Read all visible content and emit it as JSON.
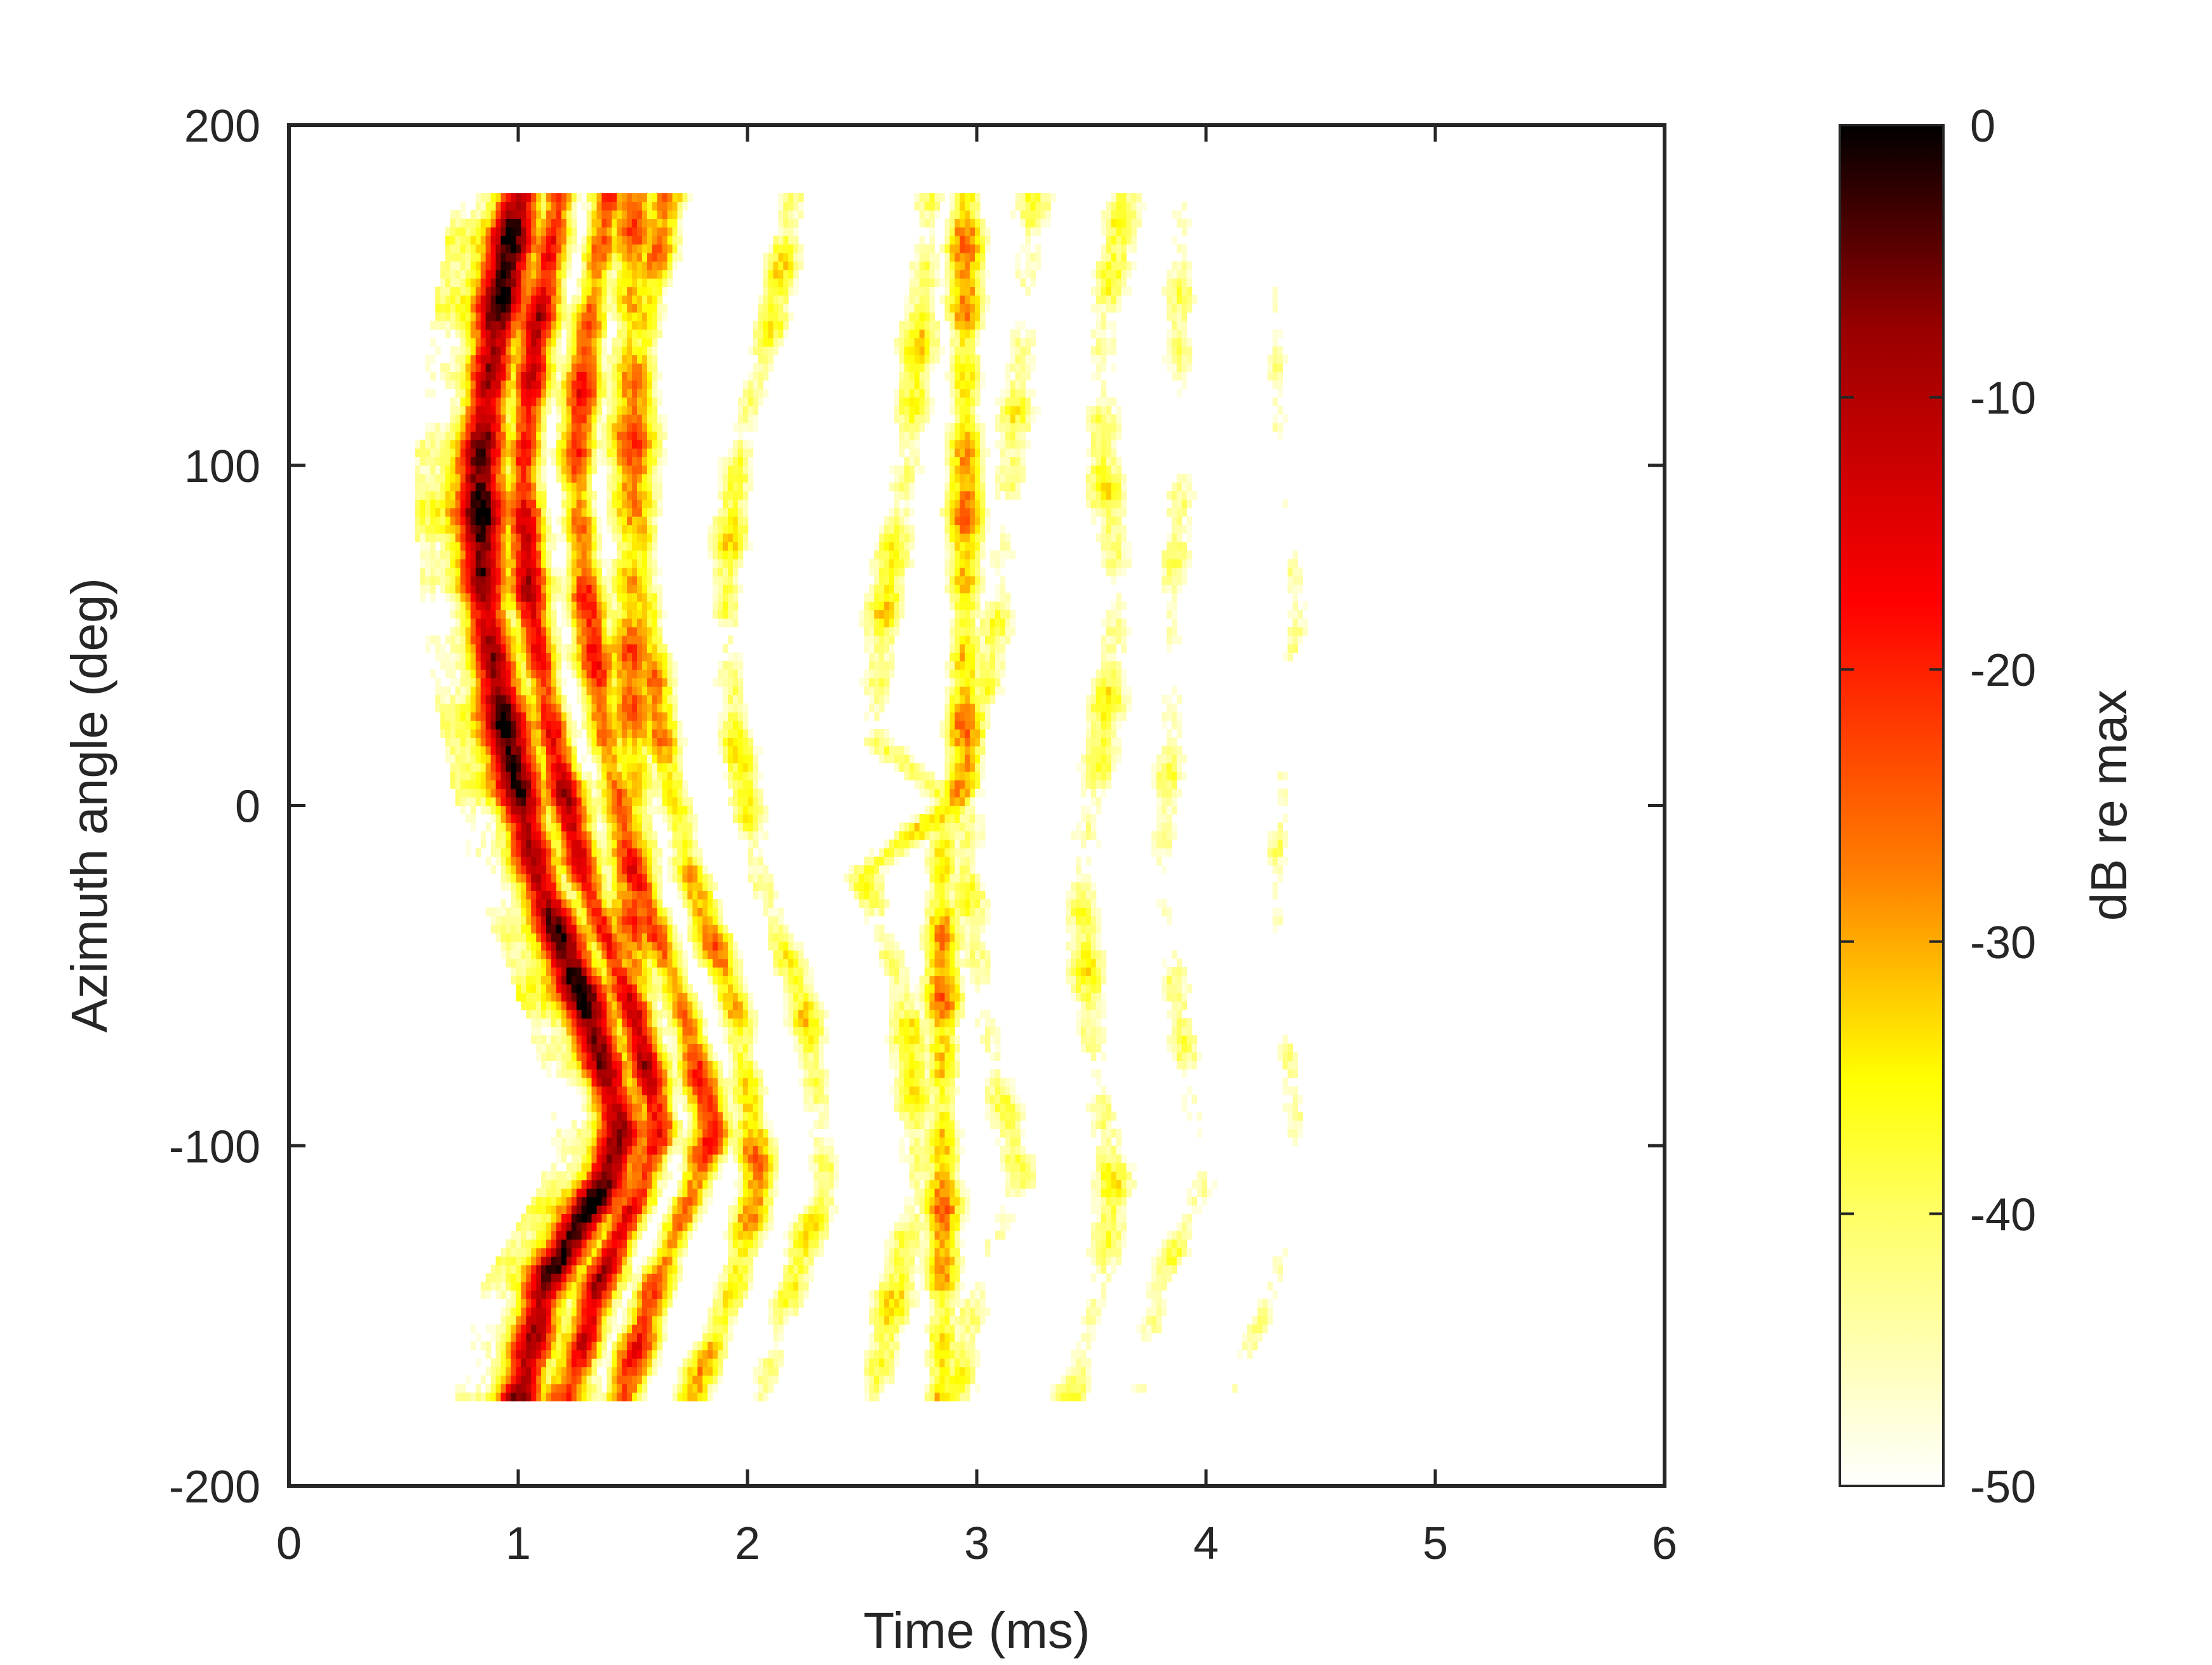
{
  "chart_data": {
    "type": "heatmap",
    "title": "",
    "xlabel": "Time (ms)",
    "ylabel": "Azimuth angle (deg)",
    "xlim": [
      0,
      6
    ],
    "ylim": [
      -200,
      200
    ],
    "x_ticks": [
      0,
      1,
      2,
      3,
      4,
      5,
      6
    ],
    "y_ticks": [
      -200,
      -100,
      0,
      100,
      200
    ],
    "grid": false,
    "data_extent": {
      "x": [
        0.55,
        4.5
      ],
      "y": [
        -175,
        180
      ]
    },
    "colorbar": {
      "label": "dB re max",
      "range": [
        -50,
        0
      ],
      "ticks": [
        -50,
        -40,
        -30,
        -20,
        -10,
        0
      ],
      "colormap": [
        "#ffffff",
        "#ffff66",
        "#ffff00",
        "#ff8000",
        "#ff0000",
        "#990000",
        "#000000"
      ],
      "colormap_positions": [
        0,
        0.2,
        0.3,
        0.45,
        0.65,
        0.85,
        1
      ]
    },
    "features": [
      {
        "name": "direct arrival",
        "points": [
          [
            -175,
            1.0
          ],
          [
            -140,
            1.12
          ],
          [
            -110,
            1.38
          ],
          [
            -95,
            1.45
          ],
          [
            -60,
            1.3
          ],
          [
            -20,
            1.08
          ],
          [
            20,
            0.95
          ],
          [
            60,
            0.85
          ],
          [
            100,
            0.83
          ],
          [
            140,
            0.9
          ],
          [
            180,
            1.0
          ]
        ],
        "peak_db": -2,
        "width_ms": 0.07,
        "falloff": 0.35
      },
      {
        "name": "reflection 1",
        "points": [
          [
            -175,
            1.22
          ],
          [
            -140,
            1.35
          ],
          [
            -110,
            1.55
          ],
          [
            -95,
            1.62
          ],
          [
            -60,
            1.5
          ],
          [
            -20,
            1.28
          ],
          [
            20,
            1.15
          ],
          [
            60,
            1.05
          ],
          [
            100,
            1.02
          ],
          [
            140,
            1.08
          ],
          [
            180,
            1.18
          ]
        ],
        "peak_db": -12,
        "width_ms": 0.06,
        "falloff": 0.25
      },
      {
        "name": "reflection 2",
        "points": [
          [
            -175,
            1.45
          ],
          [
            -140,
            1.6
          ],
          [
            -110,
            1.78
          ],
          [
            -95,
            1.85
          ],
          [
            -60,
            1.72
          ],
          [
            -20,
            1.5
          ],
          [
            20,
            1.38
          ],
          [
            60,
            1.3
          ],
          [
            100,
            1.25
          ],
          [
            140,
            1.3
          ],
          [
            180,
            1.4
          ]
        ],
        "peak_db": -20,
        "width_ms": 0.07,
        "falloff": 0.2
      },
      {
        "name": "reflection 3",
        "points": [
          [
            -175,
            1.75
          ],
          [
            -140,
            1.95
          ],
          [
            -110,
            2.05
          ],
          [
            -60,
            1.95
          ],
          [
            -20,
            1.75
          ],
          [
            20,
            1.62
          ],
          [
            60,
            1.55
          ],
          [
            100,
            1.5
          ],
          [
            140,
            1.55
          ],
          [
            180,
            1.65
          ]
        ],
        "peak_db": -28,
        "width_ms": 0.08,
        "falloff": 0.15
      },
      {
        "name": "reflection 4",
        "points": [
          [
            -175,
            2.05
          ],
          [
            -140,
            2.2
          ],
          [
            -110,
            2.35
          ],
          [
            -60,
            2.25
          ],
          [
            -20,
            2.05
          ],
          [
            20,
            1.95
          ],
          [
            60,
            1.9
          ],
          [
            100,
            1.95
          ],
          [
            140,
            2.1
          ],
          [
            180,
            2.2
          ]
        ],
        "peak_db": -36,
        "width_ms": 0.09,
        "falloff": 0.12
      },
      {
        "name": "reflection 5",
        "points": [
          [
            -175,
            2.55
          ],
          [
            -140,
            2.65
          ],
          [
            -110,
            2.75
          ],
          [
            -60,
            2.7
          ],
          [
            -20,
            2.5
          ],
          [
            0,
            2.9
          ],
          [
            20,
            2.55
          ],
          [
            60,
            2.6
          ],
          [
            100,
            2.7
          ],
          [
            140,
            2.75
          ],
          [
            180,
            2.8
          ]
        ],
        "peak_db": -36,
        "width_ms": 0.1,
        "falloff": 0.12
      },
      {
        "name": "reflection 6",
        "points": [
          [
            -175,
            2.9
          ],
          [
            -140,
            3.0
          ],
          [
            -110,
            3.2
          ],
          [
            -70,
            3.05
          ],
          [
            -20,
            2.95
          ],
          [
            20,
            3.0
          ],
          [
            60,
            3.1
          ],
          [
            100,
            3.15
          ],
          [
            140,
            3.2
          ],
          [
            180,
            3.25
          ]
        ],
        "peak_db": -40,
        "width_ms": 0.1,
        "falloff": 0.1
      },
      {
        "name": "reflection 7",
        "points": [
          [
            -175,
            3.4
          ],
          [
            -140,
            3.55
          ],
          [
            -110,
            3.6
          ],
          [
            -70,
            3.5
          ],
          [
            -20,
            3.45
          ],
          [
            20,
            3.55
          ],
          [
            60,
            3.62
          ],
          [
            100,
            3.55
          ],
          [
            140,
            3.55
          ],
          [
            180,
            3.65
          ]
        ],
        "peak_db": -38,
        "width_ms": 0.1,
        "falloff": 0.1
      },
      {
        "name": "reflection 8",
        "points": [
          [
            -175,
            3.7
          ],
          [
            -140,
            3.8
          ],
          [
            -110,
            4.0
          ],
          [
            -70,
            3.9
          ],
          [
            -20,
            3.8
          ],
          [
            20,
            3.85
          ],
          [
            60,
            3.85
          ],
          [
            100,
            3.9
          ],
          [
            140,
            3.88
          ],
          [
            180,
            3.9
          ]
        ],
        "peak_db": -42,
        "width_ms": 0.09,
        "falloff": 0.1
      },
      {
        "name": "reflection 9",
        "points": [
          [
            -175,
            4.1
          ],
          [
            -140,
            4.3
          ],
          [
            -110,
            4.42
          ],
          [
            -70,
            4.35
          ],
          [
            -20,
            4.3
          ],
          [
            20,
            4.35
          ],
          [
            60,
            4.4
          ],
          [
            100,
            4.32
          ],
          [
            140,
            4.3
          ],
          [
            180,
            4.32
          ]
        ],
        "peak_db": -45,
        "width_ms": 0.07,
        "falloff": 0.08
      },
      {
        "name": "lower-left patch",
        "points": [
          [
            -175,
            1.2
          ],
          [
            -150,
            1.3
          ],
          [
            -125,
            1.35
          ],
          [
            -105,
            1.5
          ]
        ],
        "peak_db": -25,
        "width_ms": 0.1,
        "falloff": 0.2
      },
      {
        "name": "center spot",
        "points": [
          [
            -10,
            2.85
          ],
          [
            0,
            2.9
          ],
          [
            10,
            2.95
          ]
        ],
        "peak_db": -28,
        "width_ms": 0.08,
        "falloff": 0.1
      }
    ]
  }
}
